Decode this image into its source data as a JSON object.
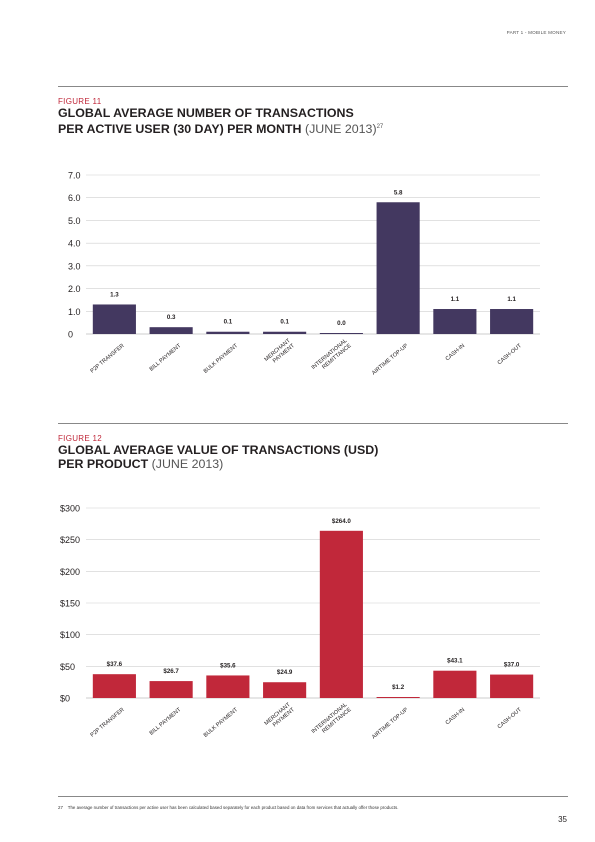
{
  "header": {
    "section_label": "PART 1 - MOBILE MONEY"
  },
  "figure11": {
    "label": "FIGURE 11",
    "title_line1": "GLOBAL AVERAGE NUMBER OF TRANSACTIONS",
    "title_line2_bold": "PER ACTIVE USER (30 DAY) PER MONTH",
    "title_line2_thin": "(JUNE 2013)",
    "footnote_ref": "27"
  },
  "figure12": {
    "label": "FIGURE 12",
    "title_line1": "GLOBAL AVERAGE VALUE OF TRANSACTIONS (USD)",
    "title_line2_bold": "PER PRODUCT",
    "title_line2_thin": "(JUNE 2013)"
  },
  "chart_data": [
    {
      "type": "bar",
      "color": "#433860",
      "categories": [
        [
          "P2P TRANSFER"
        ],
        [
          "BILL PAYMENT"
        ],
        [
          "BULK PAYMENT"
        ],
        [
          "MERCHANT",
          "PAYMENT"
        ],
        [
          "INTERNATIONAL",
          "REMITTANCE"
        ],
        [
          "AIRTIME TOP-UP"
        ],
        [
          "CASH-IN"
        ],
        [
          "CASH-OUT"
        ]
      ],
      "values": [
        1.3,
        0.3,
        0.1,
        0.1,
        0.0,
        5.8,
        1.1,
        1.1
      ],
      "value_labels": [
        "1.3",
        "0.3",
        "0.1",
        "0.1",
        "0.0",
        "5.8",
        "1.1",
        "1.1"
      ],
      "yticks": [
        "0",
        "1.0",
        "2.0",
        "3.0",
        "4.0",
        "5.0",
        "6.0",
        "7.0"
      ],
      "ylim": [
        0,
        7
      ],
      "grid": true
    },
    {
      "type": "bar",
      "color": "#c1283a",
      "categories": [
        [
          "P2P TRANSFER"
        ],
        [
          "BILL PAYMENT"
        ],
        [
          "BULK PAYMENT"
        ],
        [
          "MERCHANT",
          "PAYMENT"
        ],
        [
          "INTERNATIONAL",
          "REMITTANCE"
        ],
        [
          "AIRTIME TOP-UP"
        ],
        [
          "CASH-IN"
        ],
        [
          "CASH-OUT"
        ]
      ],
      "values": [
        37.6,
        26.7,
        35.6,
        24.9,
        264.0,
        1.2,
        43.1,
        37.0
      ],
      "value_labels": [
        "$37.6",
        "$26.7",
        "$35.6",
        "$24.9",
        "$264.0",
        "$1.2",
        "$43.1",
        "$37.0"
      ],
      "yticks": [
        "$0",
        "$50",
        "$100",
        "$150",
        "$200",
        "$250",
        "$300"
      ],
      "ylim": [
        0,
        300
      ],
      "grid": true
    }
  ],
  "footnote": {
    "number": "27",
    "text": "The average number of transactions per active user has been calculated based separately for each product based on data from services that actually offer those products."
  },
  "page_number": "35"
}
